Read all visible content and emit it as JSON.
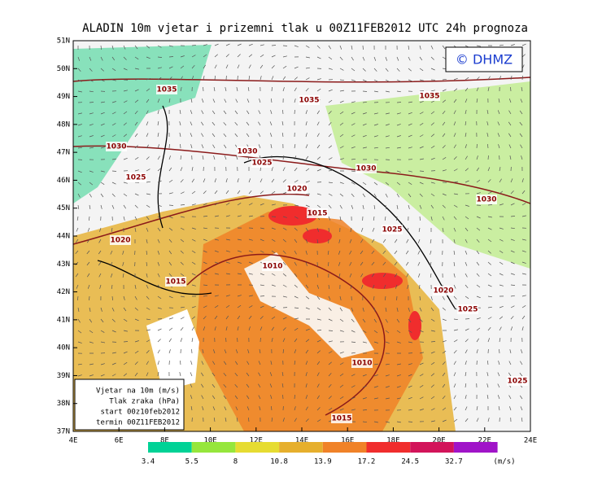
{
  "title": "ALADIN 10m vjetar i prizemni tlak u 00Z11FEB2012 UTC 24h prognoza",
  "copyright": "© DHMZ",
  "lat_labels": [
    "51N",
    "50N",
    "49N",
    "48N",
    "47N",
    "46N",
    "45N",
    "44N",
    "43N",
    "42N",
    "41N",
    "40N",
    "39N",
    "38N",
    "37N"
  ],
  "lon_labels": [
    "4E",
    "6E",
    "8E",
    "10E",
    "12E",
    "14E",
    "16E",
    "18E",
    "20E",
    "22E",
    "24E"
  ],
  "info_box": [
    "Vjetar na 10m (m/s)",
    "Tlak zraka (hPa)",
    "start 00z10feb2012",
    "termin 00Z11FEB2012"
  ],
  "colorbar": {
    "labels": [
      "3.4",
      "5.5",
      "8",
      "10.8",
      "13.9",
      "17.2",
      "24.5",
      "32.7"
    ],
    "unit": "(m/s)",
    "colors": [
      "#00d296",
      "#96e63c",
      "#e6dc32",
      "#e6af2d",
      "#f08228",
      "#f02d2d",
      "#d2145a",
      "#a014c8"
    ]
  },
  "isobar_labels": [
    "1035",
    "1035",
    "1035",
    "1030",
    "1030",
    "1025",
    "1030",
    "1025",
    "1020",
    "1030",
    "1015",
    "1025",
    "1020",
    "1010",
    "1015",
    "1020",
    "1025",
    "1010",
    "1025",
    "1015"
  ]
}
